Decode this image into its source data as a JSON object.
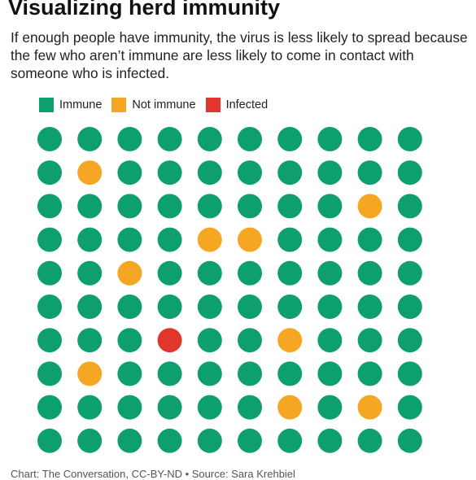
{
  "title": "Visualizing herd immunity",
  "subtitle": "If enough people have immunity, the virus is less likely to spread because the few who aren’t immune are less likely to come in contact with someone who is infected.",
  "footer": "Chart: The Conversation, CC-BY-ND • Source: Sara Krehbiel",
  "colors": {
    "immune": "#0e9f6e",
    "not_immune": "#f5a623",
    "infected": "#e0362c"
  },
  "chart_data": {
    "type": "dot-grid",
    "rows": 10,
    "cols": 10,
    "legend": [
      {
        "key": "immune",
        "label": "Immune"
      },
      {
        "key": "not_immune",
        "label": "Not immune"
      },
      {
        "key": "infected",
        "label": "Infected"
      }
    ],
    "cells": [
      [
        "immune",
        "immune",
        "immune",
        "immune",
        "immune",
        "immune",
        "immune",
        "immune",
        "immune",
        "immune"
      ],
      [
        "immune",
        "not_immune",
        "immune",
        "immune",
        "immune",
        "immune",
        "immune",
        "immune",
        "immune",
        "immune"
      ],
      [
        "immune",
        "immune",
        "immune",
        "immune",
        "immune",
        "immune",
        "immune",
        "immune",
        "not_immune",
        "immune"
      ],
      [
        "immune",
        "immune",
        "immune",
        "immune",
        "not_immune",
        "not_immune",
        "immune",
        "immune",
        "immune",
        "immune"
      ],
      [
        "immune",
        "immune",
        "not_immune",
        "immune",
        "immune",
        "immune",
        "immune",
        "immune",
        "immune",
        "immune"
      ],
      [
        "immune",
        "immune",
        "immune",
        "immune",
        "immune",
        "immune",
        "immune",
        "immune",
        "immune",
        "immune"
      ],
      [
        "immune",
        "immune",
        "immune",
        "infected",
        "immune",
        "immune",
        "not_immune",
        "immune",
        "immune",
        "immune"
      ],
      [
        "immune",
        "not_immune",
        "immune",
        "immune",
        "immune",
        "immune",
        "immune",
        "immune",
        "immune",
        "immune"
      ],
      [
        "immune",
        "immune",
        "immune",
        "immune",
        "immune",
        "immune",
        "not_immune",
        "immune",
        "not_immune",
        "immune"
      ],
      [
        "immune",
        "immune",
        "immune",
        "immune",
        "immune",
        "immune",
        "immune",
        "immune",
        "immune",
        "immune"
      ]
    ]
  }
}
